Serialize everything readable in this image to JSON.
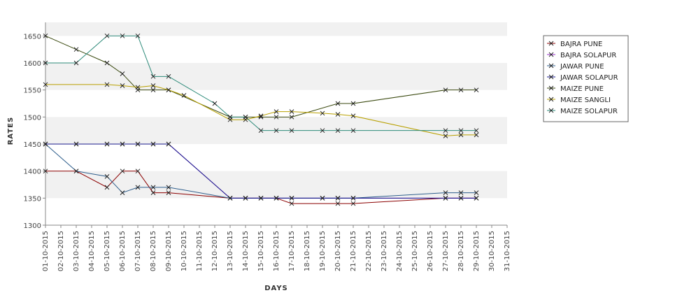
{
  "chart_data": {
    "type": "line",
    "title": "",
    "xlabel": "DAYS",
    "ylabel": "RATES",
    "ylim": [
      1300,
      1675
    ],
    "yticks": [
      1300,
      1350,
      1400,
      1450,
      1500,
      1550,
      1600,
      1650
    ],
    "grid": "alternating horizontal bands",
    "legend_position": "top-right",
    "categories": [
      "01-10-2015",
      "02-10-2015",
      "03-10-2015",
      "04-10-2015",
      "05-10-2015",
      "06-10-2015",
      "07-10-2015",
      "08-10-2015",
      "09-10-2015",
      "10-10-2015",
      "11-10-2015",
      "12-10-2015",
      "13-10-2015",
      "14-10-2015",
      "15-10-2015",
      "16-10-2015",
      "17-10-2015",
      "18-10-2015",
      "19-10-2015",
      "20-10-2015",
      "21-10-2015",
      "22-10-2015",
      "23-10-2015",
      "24-10-2015",
      "25-10-2015",
      "26-10-2015",
      "27-10-2015",
      "28-10-2015",
      "29-10-2015",
      "30-10-2015",
      "31-10-2015"
    ],
    "series": [
      {
        "name": "BAJRA PUNE",
        "color": "#8b0000",
        "points": [
          [
            "01-10-2015",
            1400
          ],
          [
            "03-10-2015",
            1400
          ],
          [
            "05-10-2015",
            1370
          ],
          [
            "06-10-2015",
            1400
          ],
          [
            "07-10-2015",
            1400
          ],
          [
            "08-10-2015",
            1360
          ],
          [
            "09-10-2015",
            1360
          ],
          [
            "13-10-2015",
            1350
          ],
          [
            "14-10-2015",
            1350
          ],
          [
            "15-10-2015",
            1350
          ],
          [
            "16-10-2015",
            1350
          ],
          [
            "17-10-2015",
            1340
          ],
          [
            "20-10-2015",
            1340
          ],
          [
            "21-10-2015",
            1340
          ],
          [
            "27-10-2015",
            1350
          ],
          [
            "28-10-2015",
            1350
          ],
          [
            "29-10-2015",
            1350
          ]
        ]
      },
      {
        "name": "BAJRA SOLAPUR",
        "color": "#9932cc",
        "points": [
          [
            "01-10-2015",
            1450
          ],
          [
            "03-10-2015",
            1450
          ],
          [
            "05-10-2015",
            1450
          ],
          [
            "06-10-2015",
            1450
          ],
          [
            "07-10-2015",
            1450
          ],
          [
            "08-10-2015",
            1450
          ],
          [
            "09-10-2015",
            1450
          ],
          [
            "13-10-2015",
            1350
          ],
          [
            "14-10-2015",
            1350
          ],
          [
            "15-10-2015",
            1350
          ],
          [
            "16-10-2015",
            1350
          ],
          [
            "17-10-2015",
            1350
          ],
          [
            "19-10-2015",
            1350
          ],
          [
            "20-10-2015",
            1350
          ],
          [
            "21-10-2015",
            1350
          ],
          [
            "27-10-2015",
            1350
          ],
          [
            "28-10-2015",
            1350
          ],
          [
            "29-10-2015",
            1350
          ]
        ]
      },
      {
        "name": "JAWAR PUNE",
        "color": "#2e5e8c",
        "points": [
          [
            "01-10-2015",
            1450
          ],
          [
            "03-10-2015",
            1400
          ],
          [
            "05-10-2015",
            1390
          ],
          [
            "06-10-2015",
            1360
          ],
          [
            "07-10-2015",
            1370
          ],
          [
            "08-10-2015",
            1370
          ],
          [
            "09-10-2015",
            1370
          ],
          [
            "13-10-2015",
            1350
          ],
          [
            "14-10-2015",
            1350
          ],
          [
            "15-10-2015",
            1350
          ],
          [
            "16-10-2015",
            1350
          ],
          [
            "17-10-2015",
            1350
          ],
          [
            "19-10-2015",
            1350
          ],
          [
            "20-10-2015",
            1350
          ],
          [
            "21-10-2015",
            1350
          ],
          [
            "27-10-2015",
            1360
          ],
          [
            "28-10-2015",
            1360
          ],
          [
            "29-10-2015",
            1360
          ]
        ]
      },
      {
        "name": "JAWAR SOLAPUR",
        "color": "#1a1a8c",
        "points": [
          [
            "01-10-2015",
            1450
          ],
          [
            "03-10-2015",
            1450
          ],
          [
            "05-10-2015",
            1450
          ],
          [
            "06-10-2015",
            1450
          ],
          [
            "07-10-2015",
            1450
          ],
          [
            "08-10-2015",
            1450
          ],
          [
            "09-10-2015",
            1450
          ],
          [
            "13-10-2015",
            1350
          ],
          [
            "14-10-2015",
            1350
          ],
          [
            "15-10-2015",
            1350
          ],
          [
            "16-10-2015",
            1350
          ],
          [
            "17-10-2015",
            1350
          ],
          [
            "19-10-2015",
            1350
          ],
          [
            "20-10-2015",
            1350
          ],
          [
            "21-10-2015",
            1350
          ],
          [
            "27-10-2015",
            1350
          ],
          [
            "28-10-2015",
            1350
          ],
          [
            "29-10-2015",
            1350
          ]
        ]
      },
      {
        "name": "MAIZE PUNE",
        "color": "#3b4a10",
        "points": [
          [
            "01-10-2015",
            1650
          ],
          [
            "03-10-2015",
            1625
          ],
          [
            "05-10-2015",
            1600
          ],
          [
            "06-10-2015",
            1580
          ],
          [
            "07-10-2015",
            1550
          ],
          [
            "08-10-2015",
            1550
          ],
          [
            "09-10-2015",
            1550
          ],
          [
            "13-10-2015",
            1500
          ],
          [
            "14-10-2015",
            1500
          ],
          [
            "15-10-2015",
            1500
          ],
          [
            "16-10-2015",
            1500
          ],
          [
            "17-10-2015",
            1500
          ],
          [
            "20-10-2015",
            1525
          ],
          [
            "21-10-2015",
            1525
          ],
          [
            "27-10-2015",
            1550
          ],
          [
            "28-10-2015",
            1550
          ],
          [
            "29-10-2015",
            1550
          ]
        ]
      },
      {
        "name": "MAIZE SANGLI",
        "color": "#b8a000",
        "points": [
          [
            "01-10-2015",
            1560
          ],
          [
            "05-10-2015",
            1560
          ],
          [
            "06-10-2015",
            1558
          ],
          [
            "07-10-2015",
            1555
          ],
          [
            "08-10-2015",
            1558
          ],
          [
            "09-10-2015",
            1550
          ],
          [
            "10-10-2015",
            1540
          ],
          [
            "13-10-2015",
            1495
          ],
          [
            "14-10-2015",
            1495
          ],
          [
            "15-10-2015",
            1502
          ],
          [
            "16-10-2015",
            1510
          ],
          [
            "17-10-2015",
            1510
          ],
          [
            "19-10-2015",
            1507
          ],
          [
            "20-10-2015",
            1505
          ],
          [
            "21-10-2015",
            1502
          ],
          [
            "27-10-2015",
            1465
          ],
          [
            "28-10-2015",
            1467
          ],
          [
            "29-10-2015",
            1467
          ]
        ]
      },
      {
        "name": "MAIZE SOLAPUR",
        "color": "#2e8b7a",
        "points": [
          [
            "01-10-2015",
            1600
          ],
          [
            "03-10-2015",
            1600
          ],
          [
            "05-10-2015",
            1650
          ],
          [
            "06-10-2015",
            1650
          ],
          [
            "07-10-2015",
            1650
          ],
          [
            "08-10-2015",
            1575
          ],
          [
            "09-10-2015",
            1575
          ],
          [
            "12-10-2015",
            1525
          ],
          [
            "13-10-2015",
            1500
          ],
          [
            "14-10-2015",
            1500
          ],
          [
            "15-10-2015",
            1475
          ],
          [
            "16-10-2015",
            1475
          ],
          [
            "17-10-2015",
            1475
          ],
          [
            "19-10-2015",
            1475
          ],
          [
            "20-10-2015",
            1475
          ],
          [
            "21-10-2015",
            1475
          ],
          [
            "27-10-2015",
            1475
          ],
          [
            "28-10-2015",
            1475
          ],
          [
            "29-10-2015",
            1475
          ]
        ]
      }
    ]
  }
}
